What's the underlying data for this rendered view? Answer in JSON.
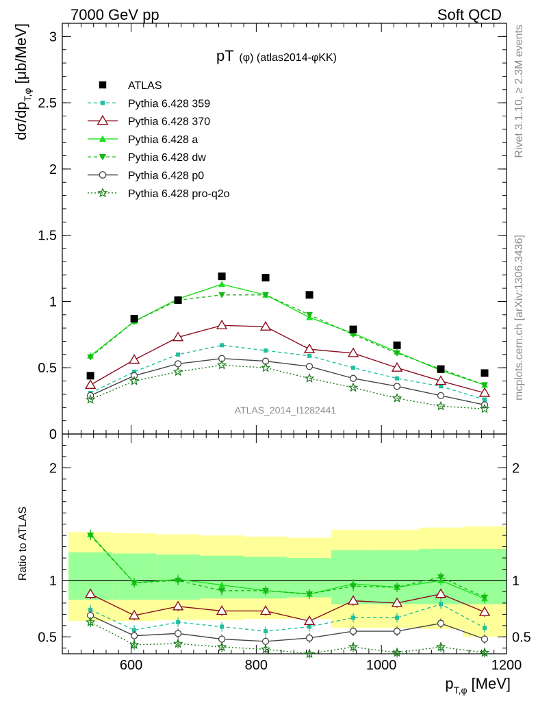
{
  "header": {
    "left": "7000 GeV pp",
    "right": "Soft QCD",
    "plot_title_main": "pT",
    "plot_title_sub": "(φ) (atlas2014-φKK)"
  },
  "side_text": {
    "rivet": "Rivet 3.1.10, ≥ 2.3M events",
    "mcplots": "mcplots.cern.ch [arXiv:1306.3436]"
  },
  "watermark": "ATLAS_2014_I1282441",
  "chart_data": [
    {
      "type": "line",
      "ylabel_main": "dσ/dp",
      "ylabel_sub": "T,φ",
      "ylabel_unit": "[μb/MeV]",
      "ylim": [
        0,
        3.1
      ],
      "yticks": [
        0,
        0.5,
        1,
        1.5,
        2,
        2.5,
        3
      ],
      "ytick_labels": [
        "0",
        "0.5",
        "1",
        "1.5",
        "2",
        "2.5",
        "3"
      ],
      "x": [
        535,
        605,
        675,
        745,
        815,
        885,
        955,
        1025,
        1095,
        1165
      ],
      "data": {
        "name": "ATLAS",
        "values": [
          0.44,
          0.87,
          1.01,
          1.19,
          1.18,
          1.05,
          0.79,
          0.67,
          0.49,
          0.46
        ]
      },
      "series": [
        {
          "name": "Pythia 6.428 359",
          "color": "#1fbf9f",
          "dash": "5,4",
          "marker": "square-small",
          "values": [
            0.31,
            0.47,
            0.6,
            0.67,
            0.63,
            0.59,
            0.5,
            0.42,
            0.36,
            0.26
          ]
        },
        {
          "name": "Pythia 6.428 370",
          "color": "#8b0f1e",
          "dash": "",
          "marker": "triangle-open",
          "values": [
            0.37,
            0.56,
            0.73,
            0.82,
            0.81,
            0.64,
            0.61,
            0.5,
            0.4,
            0.31
          ]
        },
        {
          "name": "Pythia 6.428 a",
          "color": "#1fe01f",
          "dash": "",
          "marker": "triangle-up",
          "values": [
            0.59,
            0.85,
            1.02,
            1.13,
            1.05,
            0.88,
            0.76,
            0.62,
            0.48,
            0.37
          ]
        },
        {
          "name": "Pythia 6.428 dw",
          "color": "#19b619",
          "dash": "5,4",
          "marker": "triangle-down",
          "values": [
            0.58,
            0.85,
            1.01,
            1.05,
            1.05,
            0.9,
            0.75,
            0.61,
            0.49,
            0.37
          ]
        },
        {
          "name": "Pythia 6.428 p0",
          "color": "#444444",
          "dash": "",
          "marker": "circle-open",
          "values": [
            0.29,
            0.44,
            0.53,
            0.57,
            0.55,
            0.51,
            0.42,
            0.36,
            0.29,
            0.22
          ]
        },
        {
          "name": "Pythia 6.428 pro-q2o",
          "color": "#157a15",
          "dash": "2,3",
          "marker": "star",
          "values": [
            0.26,
            0.4,
            0.47,
            0.52,
            0.5,
            0.42,
            0.35,
            0.27,
            0.21,
            0.19
          ]
        }
      ]
    },
    {
      "type": "line",
      "ylabel": "Ratio to ATLAS",
      "xlabel_main": "p",
      "xlabel_sub": "T,φ",
      "xlabel_unit": "[MeV]",
      "ylim": [
        0.35,
        2.3
      ],
      "yticks": [
        0.5,
        1,
        2
      ],
      "ytick_labels": [
        "0.5",
        "1",
        "2"
      ],
      "xlim": [
        490,
        1200
      ],
      "xticks": [
        600,
        800,
        1000,
        1200
      ],
      "xtick_labels": [
        "600",
        "800",
        "1000",
        "1200"
      ],
      "reference_line": 1,
      "bins": [
        [
          500,
          570
        ],
        [
          570,
          640
        ],
        [
          640,
          710
        ],
        [
          710,
          780
        ],
        [
          780,
          850
        ],
        [
          850,
          920
        ],
        [
          920,
          990
        ],
        [
          990,
          1060
        ],
        [
          1060,
          1130
        ],
        [
          1130,
          1200
        ]
      ],
      "band_total": [
        [
          0.64,
          1.43
        ],
        [
          0.64,
          1.42
        ],
        [
          0.65,
          1.41
        ],
        [
          0.65,
          1.4
        ],
        [
          0.66,
          1.39
        ],
        [
          0.66,
          1.38
        ],
        [
          0.58,
          1.45
        ],
        [
          0.58,
          1.45
        ],
        [
          0.57,
          1.47
        ],
        [
          0.5,
          1.48
        ]
      ],
      "band_stat": [
        [
          0.83,
          1.25
        ],
        [
          0.83,
          1.24
        ],
        [
          0.83,
          1.23
        ],
        [
          0.84,
          1.22
        ],
        [
          0.84,
          1.21
        ],
        [
          0.85,
          1.2
        ],
        [
          0.79,
          1.27
        ],
        [
          0.79,
          1.27
        ],
        [
          0.79,
          1.28
        ],
        [
          0.79,
          1.28
        ]
      ],
      "x": [
        535,
        605,
        675,
        745,
        815,
        885,
        955,
        1025,
        1095,
        1165
      ],
      "series": [
        {
          "name": "Pythia 6.428 359",
          "values": [
            0.74,
            0.56,
            0.63,
            0.59,
            0.55,
            0.59,
            0.67,
            0.67,
            0.79,
            0.58
          ]
        },
        {
          "name": "Pythia 6.428 370",
          "values": [
            0.88,
            0.69,
            0.77,
            0.73,
            0.73,
            0.64,
            0.82,
            0.8,
            0.88,
            0.72
          ]
        },
        {
          "name": "Pythia 6.428 a",
          "values": [
            1.41,
            0.98,
            1.01,
            0.96,
            0.91,
            0.88,
            0.97,
            0.94,
            1.0,
            0.84
          ]
        },
        {
          "name": "Pythia 6.428 dw",
          "values": [
            1.4,
            0.98,
            1.0,
            0.91,
            0.91,
            0.88,
            0.95,
            0.94,
            1.03,
            0.85
          ]
        },
        {
          "name": "Pythia 6.428 p0",
          "values": [
            0.69,
            0.51,
            0.53,
            0.48,
            0.46,
            0.49,
            0.55,
            0.55,
            0.62,
            0.48
          ]
        },
        {
          "name": "Pythia 6.428 pro-q2o",
          "values": [
            0.63,
            0.43,
            0.44,
            0.41,
            0.39,
            0.35,
            0.41,
            0.36,
            0.41,
            0.36
          ]
        }
      ]
    }
  ]
}
